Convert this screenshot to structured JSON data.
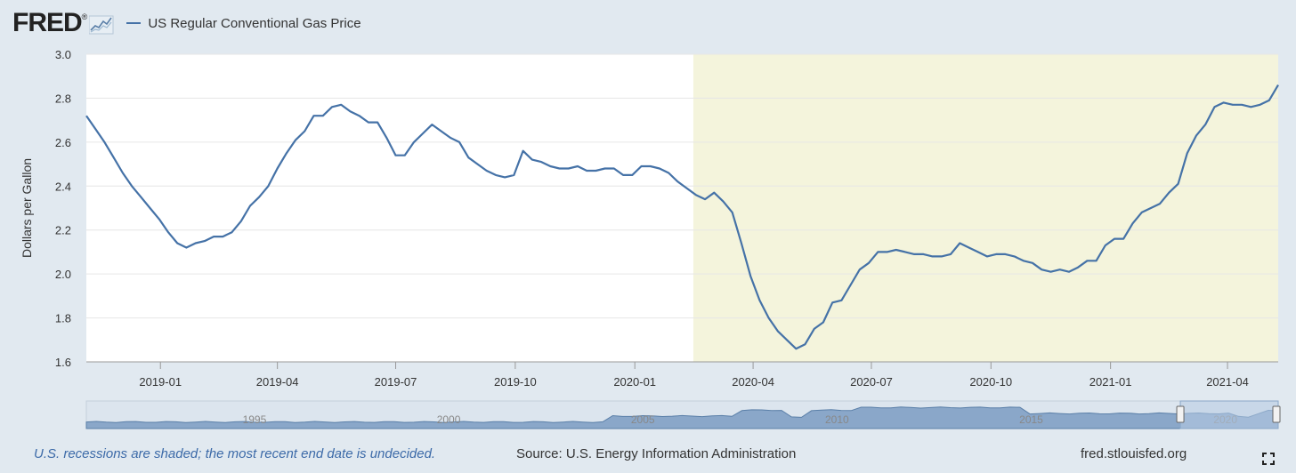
{
  "header": {
    "logo_text": "FRED",
    "logo_mark": "®",
    "legend_label": "US Regular Conventional Gas Price"
  },
  "footer": {
    "recession_note": "U.S. recessions are shaded; the most recent end date is undecided.",
    "source": "Source: U.S. Energy Information Administration",
    "site": "fred.stlouisfed.org"
  },
  "navigator": {
    "year_labels": [
      "1995",
      "2000",
      "2005",
      "2010",
      "2015",
      "2020"
    ]
  },
  "colors": {
    "series": "#4572a7",
    "recession": "#f4f4dc",
    "background": "#e1e9f0",
    "plot": "#ffffff"
  },
  "chart_data": {
    "type": "line",
    "title": "US Regular Conventional Gas Price",
    "ylabel": "Dollars per Gallon",
    "xlabel": "",
    "ylim": [
      1.6,
      3.0
    ],
    "yticks": [
      "1.6",
      "1.8",
      "2.0",
      "2.2",
      "2.4",
      "2.6",
      "2.8",
      "3.0"
    ],
    "x_range": [
      "2018-11-05",
      "2021-05-10"
    ],
    "xticks": [
      {
        "label": "2019-01",
        "date": "2019-01-01"
      },
      {
        "label": "2019-04",
        "date": "2019-04-01"
      },
      {
        "label": "2019-07",
        "date": "2019-07-01"
      },
      {
        "label": "2019-10",
        "date": "2019-10-01"
      },
      {
        "label": "2020-01",
        "date": "2020-01-01"
      },
      {
        "label": "2020-04",
        "date": "2020-04-01"
      },
      {
        "label": "2020-07",
        "date": "2020-07-01"
      },
      {
        "label": "2020-10",
        "date": "2020-10-01"
      },
      {
        "label": "2021-01",
        "date": "2021-01-01"
      },
      {
        "label": "2021-04",
        "date": "2021-04-01"
      }
    ],
    "recession": {
      "start": "2020-02-15",
      "end": "2021-05-10"
    },
    "series": [
      {
        "name": "US Regular Conventional Gas Price",
        "x": [
          "2018-11-05",
          "2018-11-12",
          "2018-11-19",
          "2018-11-26",
          "2018-12-03",
          "2018-12-10",
          "2018-12-17",
          "2018-12-24",
          "2018-12-31",
          "2019-01-07",
          "2019-01-14",
          "2019-01-21",
          "2019-01-28",
          "2019-02-04",
          "2019-02-11",
          "2019-02-18",
          "2019-02-25",
          "2019-03-04",
          "2019-03-11",
          "2019-03-18",
          "2019-03-25",
          "2019-04-01",
          "2019-04-08",
          "2019-04-15",
          "2019-04-22",
          "2019-04-29",
          "2019-05-06",
          "2019-05-13",
          "2019-05-20",
          "2019-05-27",
          "2019-06-03",
          "2019-06-10",
          "2019-06-17",
          "2019-06-24",
          "2019-07-01",
          "2019-07-08",
          "2019-07-15",
          "2019-07-22",
          "2019-07-29",
          "2019-08-05",
          "2019-08-12",
          "2019-08-19",
          "2019-08-26",
          "2019-09-02",
          "2019-09-09",
          "2019-09-16",
          "2019-09-23",
          "2019-09-30",
          "2019-10-07",
          "2019-10-14",
          "2019-10-21",
          "2019-10-28",
          "2019-11-04",
          "2019-11-11",
          "2019-11-18",
          "2019-11-25",
          "2019-12-02",
          "2019-12-09",
          "2019-12-16",
          "2019-12-23",
          "2019-12-30",
          "2020-01-06",
          "2020-01-13",
          "2020-01-20",
          "2020-01-27",
          "2020-02-03",
          "2020-02-10",
          "2020-02-17",
          "2020-02-24",
          "2020-03-02",
          "2020-03-09",
          "2020-03-16",
          "2020-03-23",
          "2020-03-30",
          "2020-04-06",
          "2020-04-13",
          "2020-04-20",
          "2020-04-27",
          "2020-05-04",
          "2020-05-11",
          "2020-05-18",
          "2020-05-25",
          "2020-06-01",
          "2020-06-08",
          "2020-06-15",
          "2020-06-22",
          "2020-06-29",
          "2020-07-06",
          "2020-07-13",
          "2020-07-20",
          "2020-07-27",
          "2020-08-03",
          "2020-08-10",
          "2020-08-17",
          "2020-08-24",
          "2020-08-31",
          "2020-09-07",
          "2020-09-14",
          "2020-09-21",
          "2020-09-28",
          "2020-10-05",
          "2020-10-12",
          "2020-10-19",
          "2020-10-26",
          "2020-11-02",
          "2020-11-09",
          "2020-11-16",
          "2020-11-23",
          "2020-11-30",
          "2020-12-07",
          "2020-12-14",
          "2020-12-21",
          "2020-12-28",
          "2021-01-04",
          "2021-01-11",
          "2021-01-18",
          "2021-01-25",
          "2021-02-01",
          "2021-02-08",
          "2021-02-15",
          "2021-02-22",
          "2021-03-01",
          "2021-03-08",
          "2021-03-15",
          "2021-03-22",
          "2021-03-29",
          "2021-04-05",
          "2021-04-12",
          "2021-04-19",
          "2021-04-26",
          "2021-05-03",
          "2021-05-10"
        ],
        "values": [
          2.72,
          2.66,
          2.6,
          2.53,
          2.46,
          2.4,
          2.35,
          2.3,
          2.25,
          2.19,
          2.14,
          2.12,
          2.14,
          2.15,
          2.17,
          2.17,
          2.19,
          2.24,
          2.31,
          2.35,
          2.4,
          2.48,
          2.55,
          2.61,
          2.65,
          2.72,
          2.72,
          2.76,
          2.77,
          2.74,
          2.72,
          2.69,
          2.69,
          2.62,
          2.54,
          2.54,
          2.6,
          2.64,
          2.68,
          2.65,
          2.62,
          2.6,
          2.53,
          2.5,
          2.47,
          2.45,
          2.44,
          2.45,
          2.56,
          2.52,
          2.51,
          2.49,
          2.48,
          2.48,
          2.49,
          2.47,
          2.47,
          2.48,
          2.48,
          2.45,
          2.45,
          2.49,
          2.49,
          2.48,
          2.46,
          2.42,
          2.39,
          2.36,
          2.34,
          2.37,
          2.33,
          2.28,
          2.14,
          1.99,
          1.88,
          1.8,
          1.74,
          1.7,
          1.66,
          1.68,
          1.75,
          1.78,
          1.87,
          1.88,
          1.95,
          2.02,
          2.05,
          2.1,
          2.1,
          2.11,
          2.1,
          2.09,
          2.09,
          2.08,
          2.08,
          2.09,
          2.14,
          2.12,
          2.1,
          2.08,
          2.09,
          2.09,
          2.08,
          2.06,
          2.05,
          2.02,
          2.01,
          2.02,
          2.01,
          2.03,
          2.06,
          2.06,
          2.13,
          2.16,
          2.16,
          2.23,
          2.28,
          2.3,
          2.32,
          2.37,
          2.41,
          2.55,
          2.63,
          2.68,
          2.76,
          2.78,
          2.77,
          2.77,
          2.76,
          2.77,
          2.79,
          2.86
        ]
      }
    ]
  }
}
